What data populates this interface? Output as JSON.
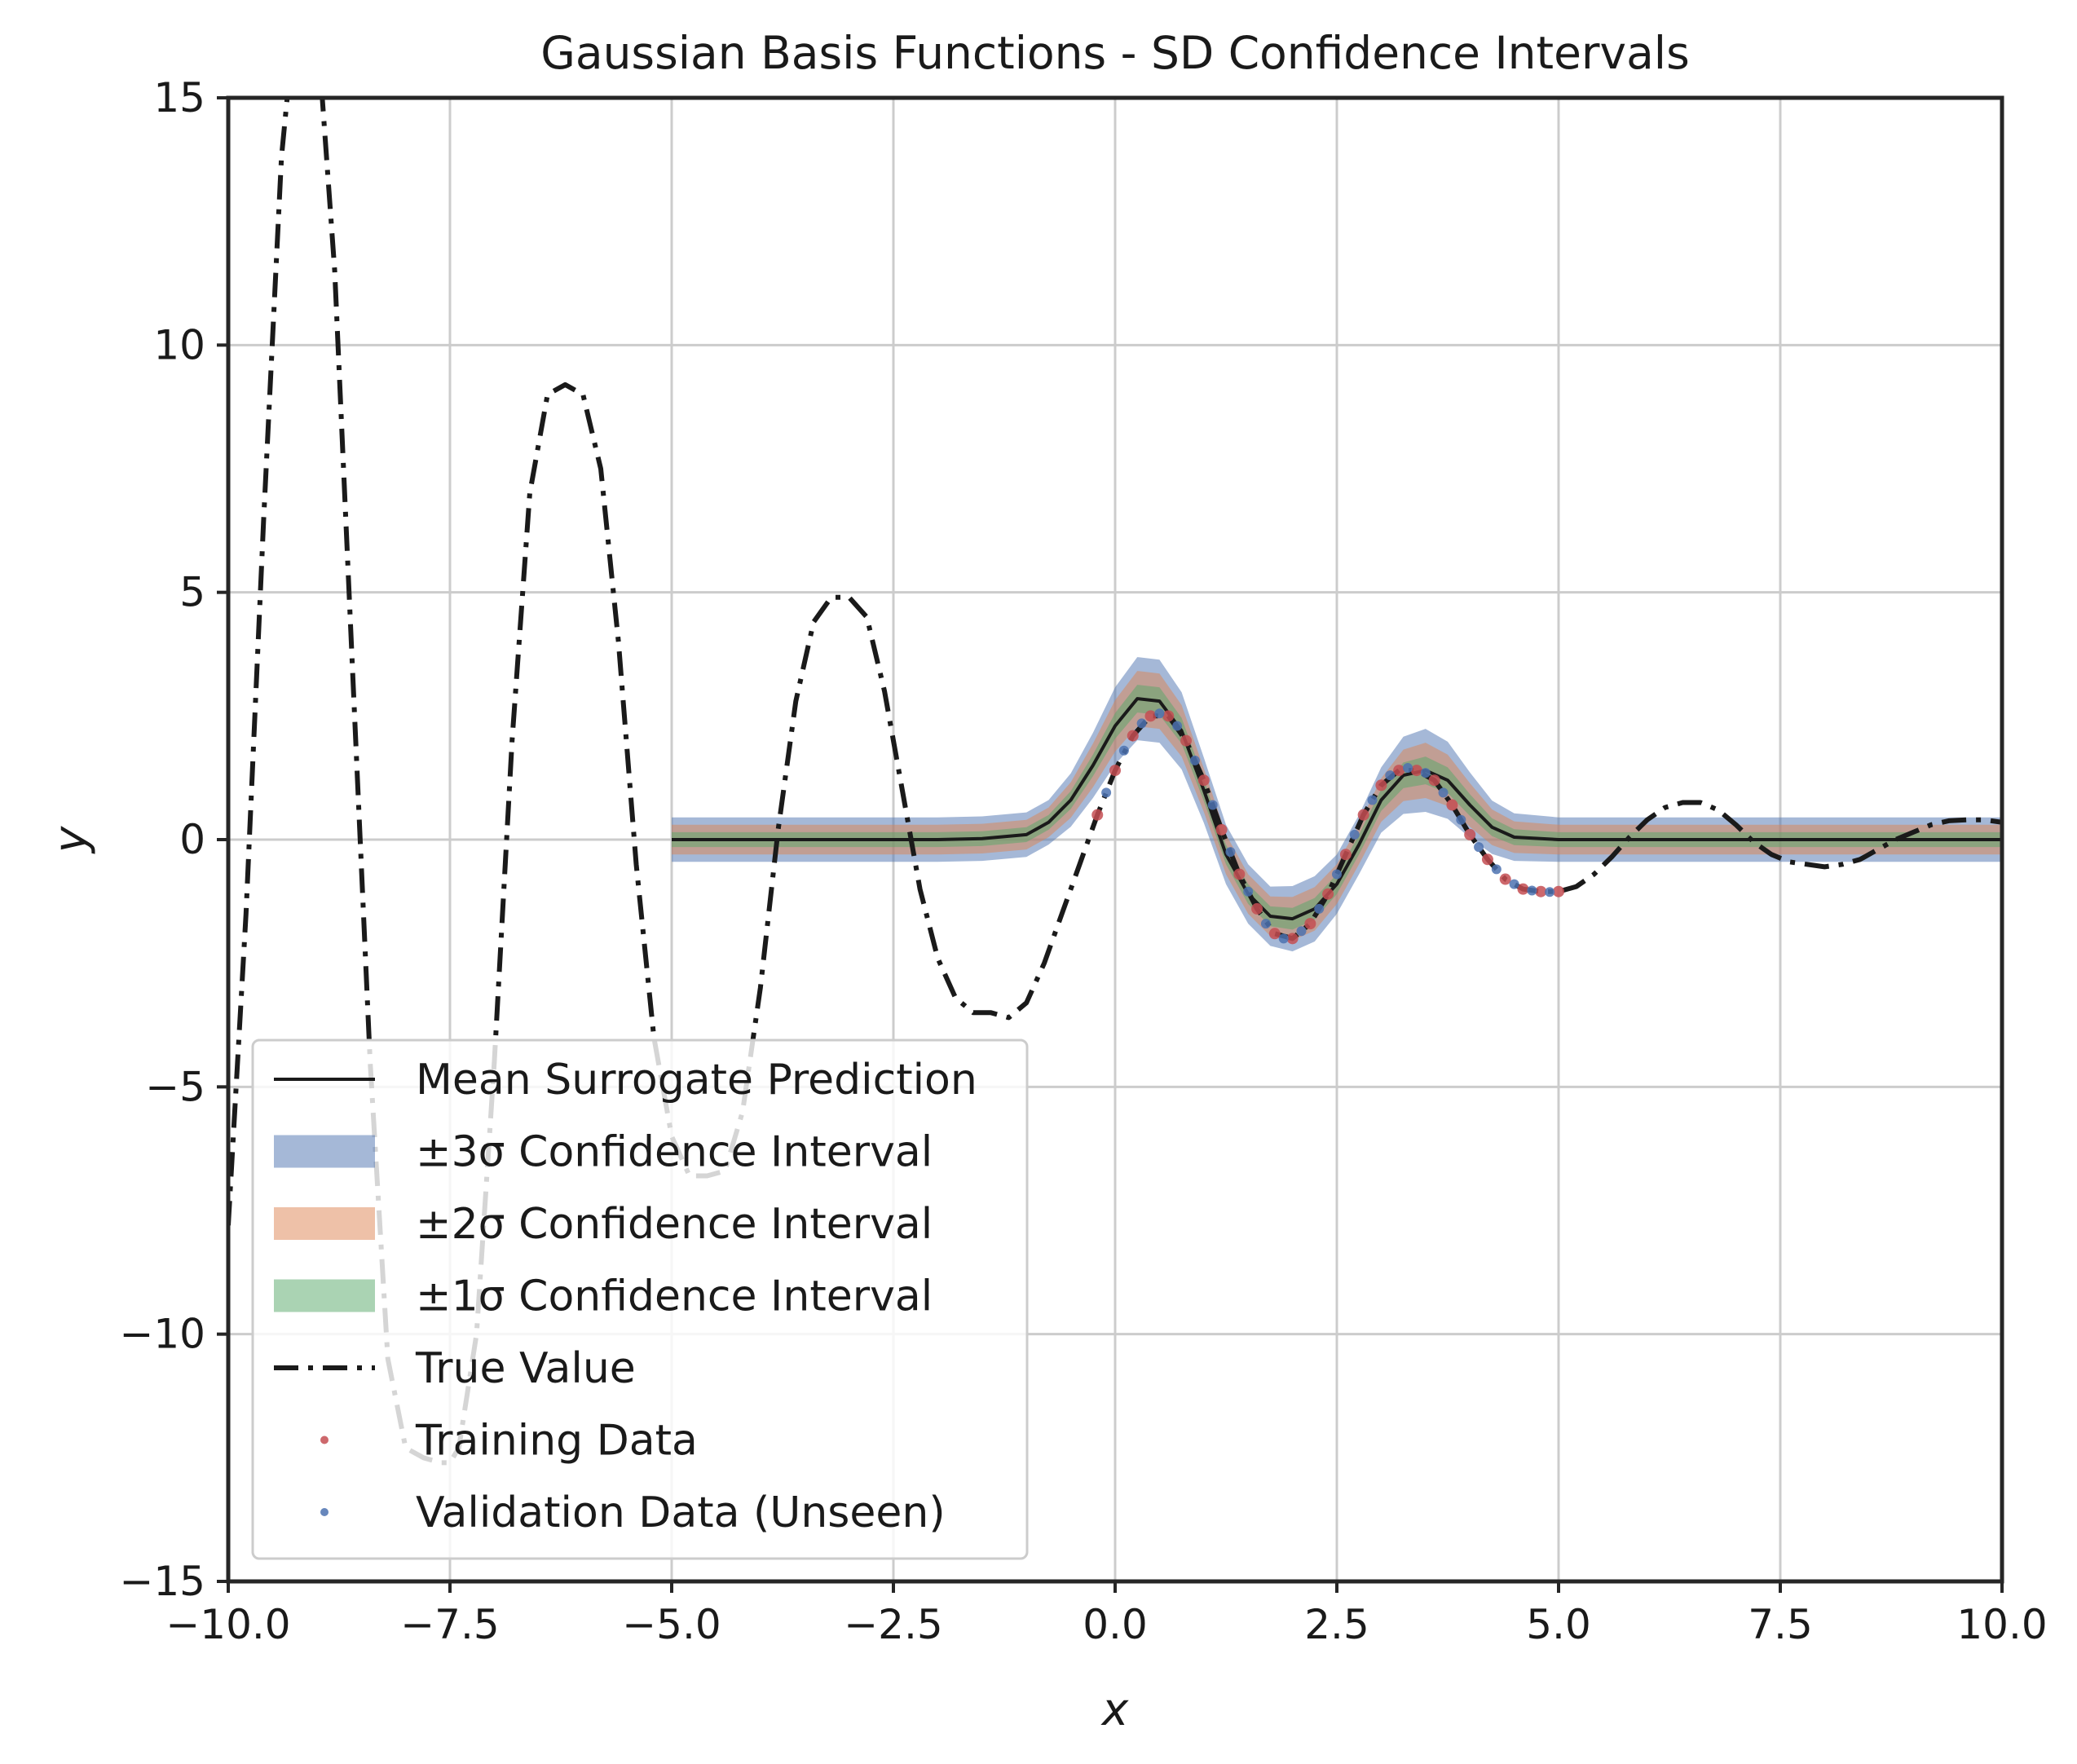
{
  "chart_data": {
    "type": "line",
    "title": "Gaussian Basis Functions - SD Confidence Intervals",
    "xlabel": "x",
    "ylabel": "y",
    "xlim": [
      -10,
      10
    ],
    "ylim": [
      -15,
      15
    ],
    "xticks": [
      -10,
      -7.5,
      -5,
      -2.5,
      0,
      2.5,
      5,
      7.5,
      10
    ],
    "xtick_labels": [
      "−10.0",
      "−7.5",
      "−5.0",
      "−2.5",
      "0.0",
      "2.5",
      "5.0",
      "7.5",
      "10.0"
    ],
    "yticks": [
      -15,
      -10,
      -5,
      0,
      5,
      10,
      15
    ],
    "ytick_labels": [
      "−15",
      "−10",
      "−5",
      "0",
      "5",
      "10",
      "15"
    ],
    "grid": true,
    "legend_position": "lower-left",
    "legend": [
      {
        "key": "mean",
        "label": "Mean Surrogate Prediction",
        "style": "line",
        "color": "#1a1a1a"
      },
      {
        "key": "ci3",
        "label": "±3σ Confidence Interval",
        "style": "patch",
        "color": "#4c72b0"
      },
      {
        "key": "ci2",
        "label": "±2σ Confidence Interval",
        "style": "patch",
        "color": "#dd8452"
      },
      {
        "key": "ci1",
        "label": "±1σ Confidence Interval",
        "style": "patch",
        "color": "#55a868"
      },
      {
        "key": "true",
        "label": "True Value",
        "style": "dashdot",
        "color": "#1a1a1a"
      },
      {
        "key": "train",
        "label": "Training Data",
        "style": "dot",
        "color": "#c44e52"
      },
      {
        "key": "val",
        "label": "Validation Data (Unseen)",
        "style": "dot",
        "color": "#4c72b0"
      }
    ],
    "series": [
      {
        "name": "True Value",
        "x": [
          -10,
          -9.8,
          -9.6,
          -9.4,
          -9.2,
          -9.0,
          -8.8,
          -8.6,
          -8.4,
          -8.2,
          -8.0,
          -7.8,
          -7.6,
          -7.5,
          -7.4,
          -7.2,
          -7.0,
          -6.8,
          -6.6,
          -6.4,
          -6.2,
          -6.0,
          -5.8,
          -5.6,
          -5.4,
          -5.2,
          -5.0,
          -4.8,
          -4.6,
          -4.4,
          -4.2,
          -4.0,
          -3.8,
          -3.6,
          -3.4,
          -3.2,
          -3.0,
          -2.8,
          -2.6,
          -2.4,
          -2.2,
          -2.0,
          -1.8,
          -1.6,
          -1.4,
          -1.2,
          -1.0,
          -0.8,
          -0.6,
          -0.4,
          -0.2,
          0.0,
          0.2,
          0.4,
          0.6,
          0.8,
          1.0,
          1.2,
          1.4,
          1.6,
          1.8,
          2.0,
          2.2,
          2.4,
          2.6,
          2.8,
          3.0,
          3.2,
          3.4,
          3.6,
          3.8,
          4.0,
          4.2,
          4.4,
          4.6,
          4.8,
          5.0,
          5.2,
          5.4,
          5.6,
          5.8,
          6.0,
          6.2,
          6.4,
          6.6,
          6.8,
          7.0,
          7.2,
          7.4,
          7.6,
          7.8,
          8.0,
          8.2,
          8.4,
          8.6,
          8.8,
          9.0,
          9.2,
          9.4,
          9.6,
          9.8,
          10.0
        ],
        "y": [
          -7.8,
          -1.5,
          6.5,
          13.8,
          17.5,
          16.5,
          11.5,
          3.5,
          -4.5,
          -10.5,
          -12.3,
          -12.5,
          -12.6,
          -12.6,
          -12.3,
          -10.0,
          -4.5,
          2.0,
          7.0,
          9.0,
          9.2,
          9.0,
          7.5,
          4.0,
          -0.5,
          -4.0,
          -6.0,
          -6.8,
          -6.8,
          -6.7,
          -5.5,
          -3.0,
          0.2,
          2.8,
          4.4,
          4.9,
          4.9,
          4.5,
          3.0,
          1.0,
          -1.0,
          -2.4,
          -3.2,
          -3.5,
          -3.5,
          -3.6,
          -3.3,
          -2.5,
          -1.5,
          -0.5,
          0.5,
          1.4,
          2.1,
          2.5,
          2.5,
          2.0,
          1.2,
          0.2,
          -0.7,
          -1.4,
          -1.9,
          -2.0,
          -1.7,
          -1.1,
          -0.3,
          0.5,
          1.1,
          1.4,
          1.4,
          1.2,
          0.7,
          0.1,
          -0.4,
          -0.8,
          -1.0,
          -1.05,
          -1.05,
          -0.95,
          -0.7,
          -0.35,
          0.05,
          0.4,
          0.65,
          0.75,
          0.75,
          0.6,
          0.3,
          -0.05,
          -0.3,
          -0.45,
          -0.5,
          -0.55,
          -0.5,
          -0.4,
          -0.2,
          0.0,
          0.15,
          0.3,
          0.38,
          0.4,
          0.4,
          0.35
        ]
      },
      {
        "name": "Mean Surrogate Prediction",
        "x": [
          -5,
          -4.5,
          -4,
          -3.5,
          -3,
          -2.5,
          -2,
          -1.5,
          -1.0,
          -0.75,
          -0.5,
          -0.25,
          0.0,
          0.25,
          0.5,
          0.75,
          1.0,
          1.25,
          1.5,
          1.75,
          2.0,
          2.25,
          2.5,
          2.75,
          3.0,
          3.25,
          3.5,
          3.75,
          4.0,
          4.25,
          4.5,
          5.0,
          5.5,
          6.0,
          6.5,
          7.0,
          7.5,
          8.0,
          8.5,
          9.0,
          9.5,
          10.0
        ],
        "y": [
          0,
          0,
          0,
          0,
          0,
          0,
          0,
          0.02,
          0.1,
          0.35,
          0.8,
          1.5,
          2.3,
          2.85,
          2.8,
          2.2,
          1.0,
          -0.3,
          -1.1,
          -1.55,
          -1.6,
          -1.4,
          -0.9,
          -0.1,
          0.8,
          1.3,
          1.4,
          1.2,
          0.7,
          0.25,
          0.05,
          0,
          0,
          0,
          0,
          0,
          0,
          0,
          0,
          0,
          0,
          0
        ],
        "sd": [
          0.15,
          0.15,
          0.15,
          0.15,
          0.15,
          0.15,
          0.15,
          0.15,
          0.15,
          0.15,
          0.18,
          0.22,
          0.26,
          0.28,
          0.28,
          0.26,
          0.22,
          0.2,
          0.2,
          0.2,
          0.22,
          0.22,
          0.2,
          0.2,
          0.22,
          0.26,
          0.28,
          0.26,
          0.22,
          0.18,
          0.16,
          0.15,
          0.15,
          0.15,
          0.15,
          0.15,
          0.15,
          0.15,
          0.15,
          0.15,
          0.15,
          0.15
        ]
      },
      {
        "name": "Training Data",
        "x": [
          -0.2,
          0.0,
          0.2,
          0.4,
          0.6,
          0.8,
          1.0,
          1.2,
          1.4,
          1.6,
          1.8,
          2.0,
          2.2,
          2.4,
          2.6,
          2.8,
          3.0,
          3.2,
          3.4,
          3.6,
          3.8,
          4.0,
          4.2,
          4.4,
          4.6,
          4.8,
          5.0
        ],
        "y": [
          0.5,
          1.4,
          2.1,
          2.5,
          2.5,
          2.0,
          1.2,
          0.2,
          -0.7,
          -1.4,
          -1.9,
          -2.0,
          -1.7,
          -1.1,
          -0.3,
          0.5,
          1.1,
          1.4,
          1.4,
          1.2,
          0.7,
          0.1,
          -0.4,
          -0.8,
          -1.0,
          -1.05,
          -1.05
        ]
      },
      {
        "name": "Validation Data (Unseen)",
        "x": [
          -0.1,
          0.1,
          0.3,
          0.5,
          0.7,
          0.9,
          1.1,
          1.3,
          1.5,
          1.7,
          1.9,
          2.1,
          2.3,
          2.5,
          2.7,
          2.9,
          3.1,
          3.3,
          3.5,
          3.7,
          3.9,
          4.1,
          4.3,
          4.5,
          4.7,
          4.9
        ],
        "y": [
          0.95,
          1.8,
          2.35,
          2.55,
          2.3,
          1.6,
          0.7,
          -0.25,
          -1.05,
          -1.7,
          -2.0,
          -1.85,
          -1.4,
          -0.7,
          0.1,
          0.8,
          1.3,
          1.45,
          1.35,
          0.95,
          0.4,
          -0.15,
          -0.6,
          -0.9,
          -1.03,
          -1.06
        ]
      }
    ]
  }
}
